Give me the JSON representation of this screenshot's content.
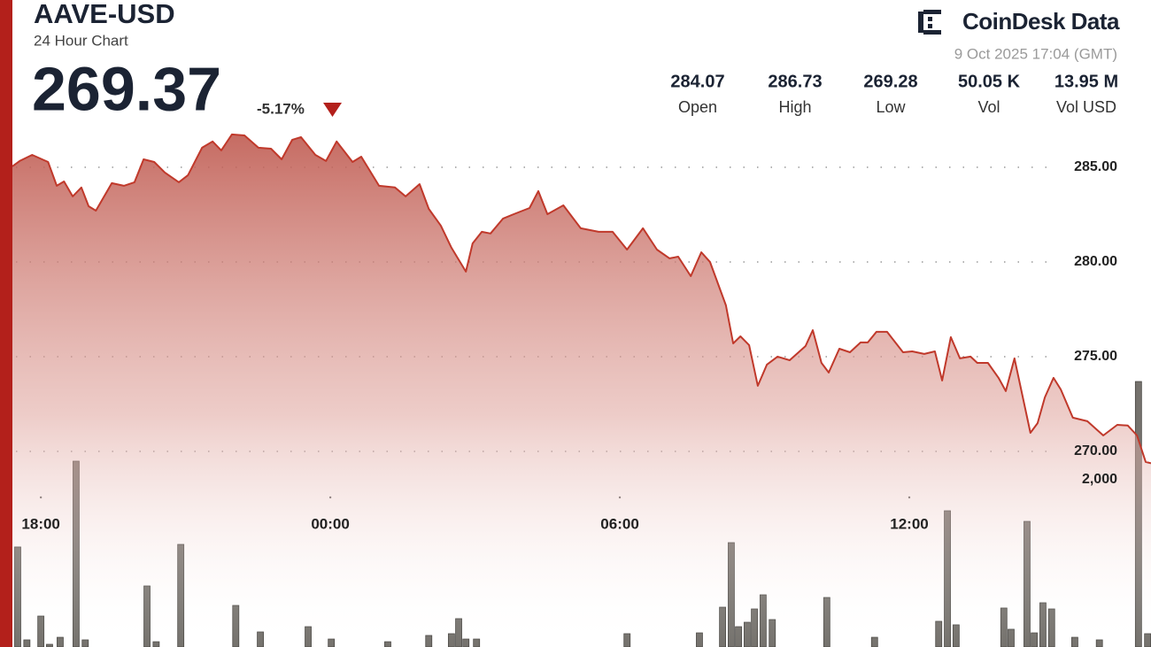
{
  "header": {
    "symbol": "AAVE-USD",
    "subtitle": "24 Hour Chart",
    "price": "269.37",
    "change": "-5.17%",
    "brand": "CoinDesk Data",
    "timestamp": "9 Oct 2025 17:04 (GMT)"
  },
  "stats": [
    {
      "value": "284.07",
      "label": "Open"
    },
    {
      "value": "286.73",
      "label": "High"
    },
    {
      "value": "269.28",
      "label": "Low"
    },
    {
      "value": "50.05 K",
      "label": "Vol"
    },
    {
      "value": "13.95 M",
      "label": "Vol USD"
    }
  ],
  "chart_data": {
    "type": "line",
    "grid": true,
    "xlim": [
      -0.59,
      23.01
    ],
    "xticks": [
      {
        "value": 0,
        "label": "18:00"
      },
      {
        "value": 6,
        "label": "00:00"
      },
      {
        "value": 12,
        "label": "06:00"
      },
      {
        "value": 18,
        "label": "12:00"
      }
    ],
    "ylim": [
      259.67,
      286.82
    ],
    "yticks": [
      {
        "value": 285,
        "label": "285.00"
      },
      {
        "value": 280,
        "label": "280.00"
      },
      {
        "value": 275,
        "label": "275.00"
      },
      {
        "value": 270,
        "label": "270.00"
      }
    ],
    "y2lim": [
      0,
      6148
    ],
    "y2ticks": [
      {
        "value": 2000,
        "label": "2,000"
      }
    ],
    "series": [
      {
        "type": "line",
        "color": "#c0392b",
        "x": [
          -0.59,
          -0.44,
          -0.18,
          0.15,
          0.33,
          0.48,
          0.66,
          0.84,
          0.99,
          1.14,
          1.47,
          1.72,
          1.94,
          2.13,
          2.35,
          2.57,
          2.86,
          3.05,
          3.34,
          3.56,
          3.74,
          3.96,
          4.22,
          4.51,
          4.77,
          4.99,
          5.21,
          5.39,
          5.69,
          5.91,
          6.13,
          6.46,
          6.64,
          7.01,
          7.34,
          7.56,
          7.85,
          8.04,
          8.29,
          8.51,
          8.81,
          8.95,
          9.14,
          9.32,
          9.58,
          9.8,
          10.13,
          10.31,
          10.5,
          10.83,
          11.19,
          11.56,
          11.85,
          12.15,
          12.48,
          12.77,
          13.03,
          13.21,
          13.47,
          13.69,
          13.87,
          14.2,
          14.35,
          14.5,
          14.68,
          14.86,
          15.05,
          15.27,
          15.52,
          15.85,
          16.0,
          16.18,
          16.33,
          16.55,
          16.77,
          16.99,
          17.14,
          17.32,
          17.54,
          17.87,
          18.06,
          18.31,
          18.53,
          18.68,
          18.86,
          19.05,
          19.27,
          19.41,
          19.63,
          19.85,
          20.0,
          20.18,
          20.51,
          20.66,
          20.81,
          20.99,
          21.14,
          21.39,
          21.69,
          22.02,
          22.31,
          22.53,
          22.72,
          22.9,
          23.01
        ],
        "values": [
          285.05,
          285.33,
          285.65,
          285.28,
          284.02,
          284.25,
          283.46,
          283.93,
          282.94,
          282.71,
          284.16,
          284.02,
          284.21,
          285.42,
          285.28,
          284.72,
          284.21,
          284.58,
          286.03,
          286.36,
          285.89,
          286.73,
          286.68,
          286.03,
          285.98,
          285.42,
          286.45,
          286.59,
          285.65,
          285.33,
          286.36,
          285.28,
          285.56,
          284.02,
          283.93,
          283.46,
          284.11,
          282.8,
          281.92,
          280.75,
          279.49,
          280.98,
          281.59,
          281.5,
          282.29,
          282.52,
          282.85,
          283.74,
          282.52,
          282.99,
          281.78,
          281.59,
          281.59,
          280.65,
          281.78,
          280.65,
          280.19,
          280.28,
          279.25,
          280.51,
          280.0,
          277.71,
          275.7,
          276.07,
          275.61,
          273.46,
          274.58,
          275.0,
          274.81,
          275.56,
          276.4,
          274.67,
          274.16,
          275.42,
          275.23,
          275.75,
          275.75,
          276.31,
          276.31,
          275.23,
          275.28,
          275.14,
          275.28,
          273.74,
          276.03,
          274.91,
          275.0,
          274.67,
          274.67,
          273.88,
          273.18,
          274.91,
          270.98,
          271.49,
          272.85,
          273.88,
          273.27,
          271.78,
          271.59,
          270.84,
          271.4,
          271.36,
          270.84,
          269.44,
          269.37
        ]
      },
      {
        "type": "bar",
        "axis": "y2",
        "color": "#75726d",
        "x": [
          -0.48,
          -0.29,
          0,
          0.18,
          0.4,
          0.73,
          0.92,
          2.2,
          2.39,
          2.9,
          4.04,
          4.55,
          5.54,
          6.02,
          7.19,
          8.04,
          8.51,
          8.66,
          8.81,
          9.03,
          12.15,
          13.65,
          14.13,
          14.31,
          14.46,
          14.64,
          14.79,
          14.97,
          15.16,
          16.29,
          17.28,
          18.61,
          18.79,
          18.97,
          19.96,
          20.11,
          20.44,
          20.59,
          20.77,
          20.95,
          21.43,
          21.94,
          22.75,
          22.94
        ],
        "values": [
          1196,
          85,
          370,
          32,
          116,
          2222,
          85,
          730,
          63,
          1227,
          497,
          180,
          243,
          95,
          63,
          138,
          159,
          339,
          95,
          95,
          159,
          169,
          476,
          1248,
          243,
          296,
          455,
          624,
          328,
          592,
          116,
          307,
          1629,
          265,
          466,
          212,
          1502,
          169,
          529,
          455,
          116,
          85,
          3174,
          159
        ]
      }
    ]
  }
}
